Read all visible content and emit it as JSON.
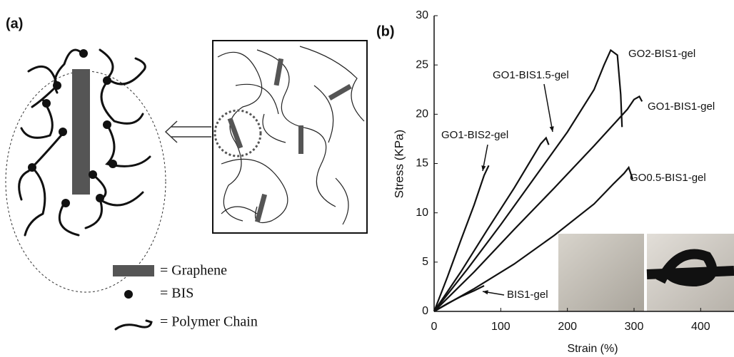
{
  "panel_a": {
    "label": "(a)",
    "legend": [
      "= Graphene",
      "= BIS",
      "= Polymer Chain"
    ]
  },
  "chart_data": {
    "type": "line",
    "panel_label": "(b)",
    "x_label": "Strain (%)",
    "y_label": "Stress (KPa)",
    "xlim": [
      0,
      450
    ],
    "xticks": [
      0,
      100,
      200,
      300,
      400
    ],
    "ylim": [
      0,
      30
    ],
    "yticks": [
      0,
      5,
      10,
      15,
      20,
      25,
      30
    ],
    "series": [
      {
        "name": "BIS1-gel",
        "color": "#111111",
        "x": [
          0,
          20,
          40,
          60,
          75
        ],
        "values": [
          0,
          0.8,
          1.5,
          2.1,
          2.6
        ]
      },
      {
        "name": "GO1-BIS2-gel",
        "color": "#111111",
        "x": [
          0,
          20,
          40,
          60,
          75,
          82
        ],
        "values": [
          0,
          3.5,
          7.2,
          10.8,
          13.8,
          14.8
        ]
      },
      {
        "name": "GO1-BIS1.5-gel",
        "color": "#111111",
        "x": [
          0,
          40,
          80,
          120,
          160,
          168,
          172
        ],
        "values": [
          0,
          4,
          8.3,
          12.5,
          17,
          17.6,
          16.9
        ]
      },
      {
        "name": "GO2-BIS1-gel",
        "color": "#111111",
        "x": [
          0,
          50,
          100,
          150,
          200,
          240,
          255,
          265,
          275,
          280,
          282
        ],
        "values": [
          0,
          4.3,
          8.8,
          13.5,
          18.2,
          22.5,
          25,
          26.5,
          26,
          22,
          18.7
        ]
      },
      {
        "name": "GO1-BIS1-gel",
        "color": "#111111",
        "x": [
          0,
          60,
          120,
          180,
          240,
          290,
          300,
          308,
          312
        ],
        "values": [
          0,
          4,
          8.3,
          12.5,
          16.8,
          20.5,
          21.5,
          21.8,
          21.3
        ]
      },
      {
        "name": "GO0.5-BIS1-gel",
        "color": "#111111",
        "x": [
          0,
          60,
          120,
          180,
          240,
          270,
          285,
          292,
          298
        ],
        "values": [
          0,
          2.3,
          4.8,
          7.7,
          10.9,
          13,
          14,
          14.6,
          13.4
        ]
      }
    ]
  }
}
